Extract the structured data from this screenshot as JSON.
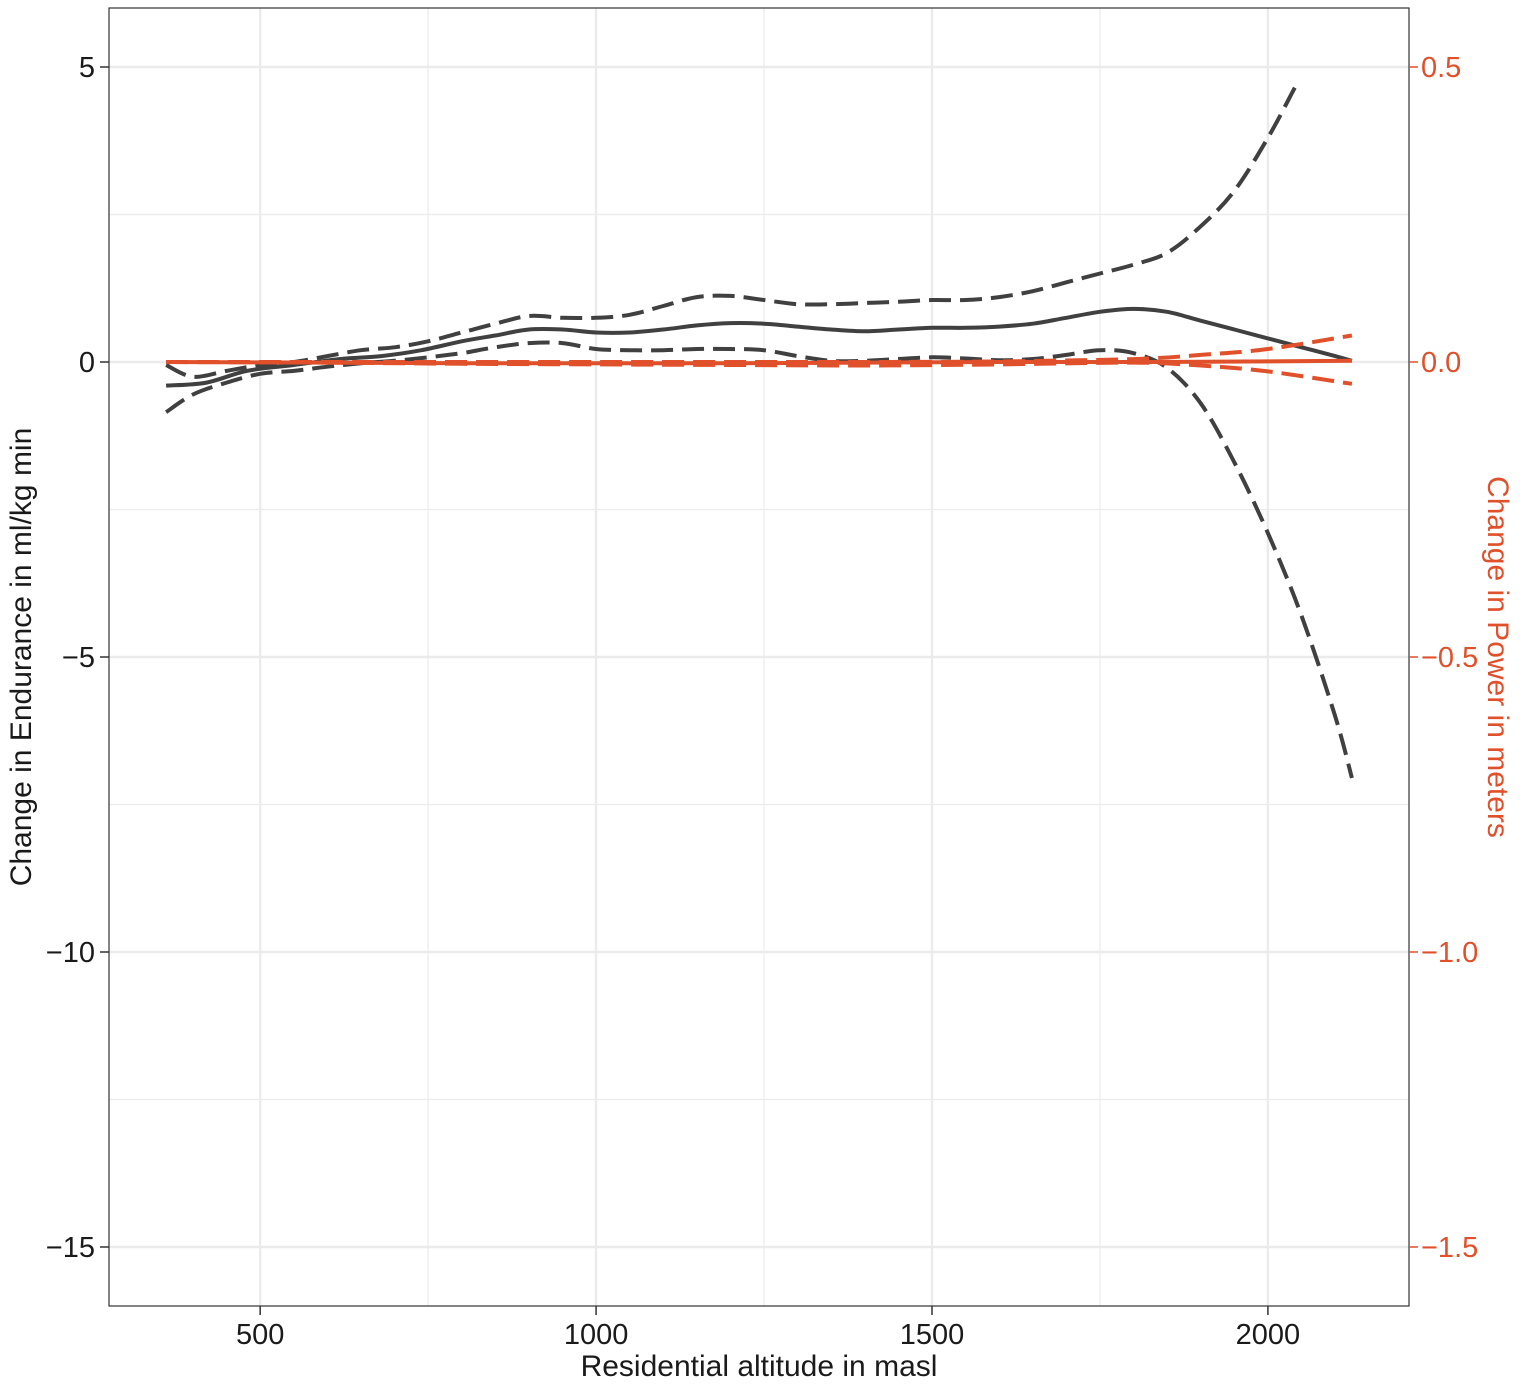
{
  "chart_data": {
    "type": "line",
    "title": "",
    "xlabel": "Residential altitude in masl",
    "ylabel": "Change in Endurance in ml/kg min",
    "y2label": "Change in Power in meters",
    "xlim": [
      275,
      2210
    ],
    "ylim": [
      -16,
      6
    ],
    "y2lim": [
      -1.6,
      0.6
    ],
    "xticks": [
      500,
      1000,
      1500,
      2000
    ],
    "xticks_minor": [
      750,
      1250,
      1750
    ],
    "yticks": [
      5,
      0,
      -5,
      -10,
      -15
    ],
    "yticks_minor": [
      2.5,
      -2.5,
      -7.5,
      -12.5
    ],
    "ytick_labels": [
      "5",
      "0",
      "−5",
      "−10",
      "−15"
    ],
    "y2ticks": [
      0.5,
      0.0,
      -0.5,
      -1.0,
      -1.5
    ],
    "y2tick_labels": [
      "0.5",
      "0.0",
      "−0.5",
      "−1.0",
      "−1.5"
    ],
    "grid": true,
    "colors": {
      "endurance": "#404040",
      "power": "#e0502b",
      "grid": "#ebebeb",
      "border": "#333333"
    },
    "series": [
      {
        "axis": "left",
        "style": "solid",
        "color": "#404040",
        "x": [
          360,
          420,
          480,
          550,
          620,
          680,
          740,
          800,
          850,
          900,
          950,
          1000,
          1050,
          1100,
          1150,
          1200,
          1250,
          1300,
          1350,
          1400,
          1450,
          1500,
          1550,
          1600,
          1650,
          1700,
          1750,
          1800,
          1850,
          1900,
          1950,
          2000,
          2050,
          2100,
          2125
        ],
        "y": [
          -0.4,
          -0.35,
          -0.15,
          -0.05,
          0.05,
          0.1,
          0.2,
          0.35,
          0.45,
          0.55,
          0.55,
          0.5,
          0.5,
          0.55,
          0.62,
          0.66,
          0.65,
          0.6,
          0.55,
          0.52,
          0.55,
          0.58,
          0.58,
          0.6,
          0.65,
          0.75,
          0.85,
          0.9,
          0.85,
          0.7,
          0.55,
          0.4,
          0.25,
          0.1,
          0.02
        ]
      },
      {
        "axis": "left",
        "style": "dashed",
        "color": "#404040",
        "x": [
          360,
          400,
          450,
          500,
          550,
          600,
          650,
          700,
          750,
          800,
          850,
          900,
          950,
          1000,
          1050,
          1100,
          1150,
          1200,
          1250,
          1300,
          1350,
          1400,
          1450,
          1500,
          1550,
          1600,
          1650,
          1700,
          1750,
          1800,
          1850,
          1900,
          1950,
          2000,
          2040
        ],
        "y": [
          -0.05,
          -0.25,
          -0.15,
          -0.05,
          0.0,
          0.1,
          0.2,
          0.25,
          0.35,
          0.5,
          0.65,
          0.78,
          0.75,
          0.75,
          0.8,
          0.95,
          1.1,
          1.12,
          1.05,
          0.98,
          0.98,
          1.0,
          1.02,
          1.05,
          1.05,
          1.1,
          1.2,
          1.35,
          1.5,
          1.65,
          1.85,
          2.3,
          2.9,
          3.8,
          4.65
        ]
      },
      {
        "axis": "left",
        "style": "dashed",
        "color": "#404040",
        "x": [
          360,
          400,
          450,
          500,
          550,
          600,
          650,
          700,
          750,
          800,
          850,
          900,
          950,
          1000,
          1050,
          1100,
          1150,
          1200,
          1250,
          1300,
          1350,
          1400,
          1450,
          1500,
          1550,
          1600,
          1650,
          1700,
          1750,
          1800,
          1850,
          1900,
          1950,
          2000,
          2050,
          2100,
          2125
        ],
        "y": [
          -0.85,
          -0.55,
          -0.35,
          -0.2,
          -0.15,
          -0.08,
          -0.02,
          0.02,
          0.08,
          0.15,
          0.25,
          0.32,
          0.32,
          0.22,
          0.2,
          0.2,
          0.22,
          0.22,
          0.2,
          0.1,
          0.02,
          0.02,
          0.05,
          0.08,
          0.06,
          0.03,
          0.05,
          0.12,
          0.2,
          0.15,
          -0.1,
          -0.7,
          -1.7,
          -2.9,
          -4.3,
          -6.0,
          -7.05
        ]
      },
      {
        "axis": "right",
        "style": "solid",
        "color": "#e0502b",
        "x": [
          360,
          600,
          800,
          1000,
          1200,
          1400,
          1600,
          1800,
          2000,
          2125
        ],
        "y": [
          0.0,
          -0.001,
          -0.002,
          -0.002,
          -0.002,
          -0.001,
          0.0,
          0.0,
          0.001,
          0.002
        ]
      },
      {
        "axis": "right",
        "style": "dashed",
        "color": "#e0502b",
        "x": [
          360,
          600,
          800,
          1000,
          1200,
          1400,
          1600,
          1800,
          1900,
          2000,
          2125
        ],
        "y": [
          0.0,
          0.0,
          0.0,
          0.0,
          0.0,
          0.0,
          0.001,
          0.005,
          0.012,
          0.022,
          0.045
        ]
      },
      {
        "axis": "right",
        "style": "dashed",
        "color": "#e0502b",
        "x": [
          360,
          600,
          800,
          1000,
          1200,
          1400,
          1600,
          1800,
          1900,
          2000,
          2125
        ],
        "y": [
          0.0,
          -0.001,
          -0.003,
          -0.004,
          -0.005,
          -0.006,
          -0.004,
          -0.001,
          -0.006,
          -0.016,
          -0.037
        ]
      }
    ]
  }
}
